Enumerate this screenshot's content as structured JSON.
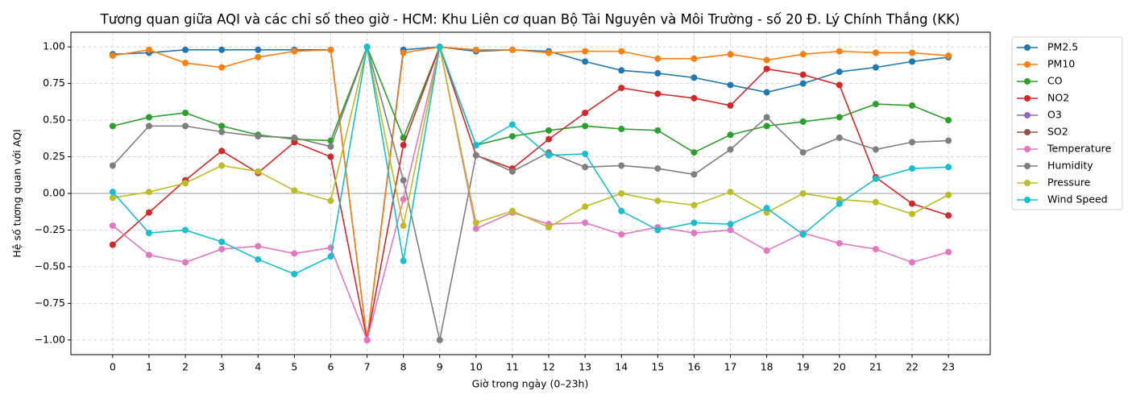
{
  "chart_data": {
    "type": "line",
    "title": "Tương quan giữa AQI và các chỉ số theo giờ - HCM: Khu Liên cơ quan Bộ Tài Nguyên và Môi Trường - số 20 Đ. Lý Chính Thắng (KK)",
    "xlabel": "Giờ trong ngày (0–23h)",
    "ylabel": "Hệ số tương quan với AQI",
    "x": [
      0,
      1,
      2,
      3,
      4,
      5,
      6,
      7,
      8,
      9,
      10,
      11,
      12,
      13,
      14,
      15,
      16,
      17,
      18,
      19,
      20,
      21,
      22,
      23
    ],
    "xlim": [
      -1.15,
      24.15
    ],
    "xticks": [
      0,
      1,
      2,
      3,
      4,
      5,
      6,
      7,
      8,
      9,
      10,
      11,
      12,
      13,
      14,
      15,
      16,
      17,
      18,
      19,
      20,
      21,
      22,
      23
    ],
    "ylim": [
      -1.1,
      1.1
    ],
    "yticks": [
      {
        "value": -1,
        "label": "−1.00"
      },
      {
        "value": -0.75,
        "label": "−0.75"
      },
      {
        "value": -0.5,
        "label": "−0.50"
      },
      {
        "value": -0.25,
        "label": "−0.25"
      },
      {
        "value": 0,
        "label": "0.00"
      },
      {
        "value": 0.25,
        "label": "0.25"
      },
      {
        "value": 0.5,
        "label": "0.50"
      },
      {
        "value": 0.75,
        "label": "0.75"
      },
      {
        "value": 1,
        "label": "1.00"
      }
    ],
    "grid": true,
    "hline": 0,
    "legend": "outside upper right",
    "series": [
      {
        "name": "PM2.5",
        "color": "#1f77b4",
        "values": [
          0.95,
          0.96,
          0.98,
          0.98,
          0.98,
          0.98,
          0.98,
          -1.0,
          0.98,
          1.0,
          0.97,
          0.98,
          0.97,
          0.9,
          0.84,
          0.82,
          0.79,
          0.74,
          0.69,
          0.75,
          0.83,
          0.86,
          0.9,
          0.93
        ]
      },
      {
        "name": "PM10",
        "color": "#ff7f0e",
        "values": [
          0.94,
          0.98,
          0.89,
          0.86,
          0.93,
          0.97,
          0.98,
          -1.0,
          0.96,
          1.0,
          0.98,
          0.98,
          0.96,
          0.97,
          0.97,
          0.92,
          0.92,
          0.95,
          0.91,
          0.95,
          0.97,
          0.96,
          0.96,
          0.94
        ]
      },
      {
        "name": "CO",
        "color": "#2ca02c",
        "values": [
          0.46,
          0.52,
          0.55,
          0.46,
          0.4,
          0.37,
          0.36,
          1.0,
          0.38,
          1.0,
          0.33,
          0.39,
          0.43,
          0.46,
          0.44,
          0.43,
          0.28,
          0.4,
          0.46,
          0.49,
          0.52,
          0.61,
          0.6,
          0.5
        ]
      },
      {
        "name": "NO2",
        "color": "#d62728",
        "values": [
          -0.35,
          -0.13,
          0.09,
          0.29,
          0.14,
          0.35,
          0.25,
          -1.0,
          0.33,
          1.0,
          0.26,
          0.17,
          0.37,
          0.55,
          0.72,
          0.68,
          0.65,
          0.6,
          0.85,
          0.81,
          0.74,
          0.11,
          -0.07,
          -0.15
        ]
      },
      {
        "name": "O3",
        "color": "#9467bd",
        "values": [
          null,
          null,
          null,
          null,
          null,
          null,
          null,
          null,
          null,
          null,
          null,
          null,
          null,
          null,
          null,
          null,
          null,
          null,
          null,
          null,
          null,
          null,
          null,
          null
        ]
      },
      {
        "name": "SO2",
        "color": "#8c564b",
        "values": [
          null,
          null,
          null,
          null,
          null,
          null,
          null,
          null,
          null,
          null,
          null,
          null,
          null,
          null,
          null,
          null,
          null,
          null,
          null,
          null,
          null,
          null,
          null,
          null
        ]
      },
      {
        "name": "Temperature",
        "color": "#e377c2",
        "values": [
          -0.22,
          -0.42,
          -0.47,
          -0.38,
          -0.36,
          -0.41,
          -0.37,
          -1.0,
          -0.04,
          1.0,
          -0.24,
          -0.13,
          -0.21,
          -0.2,
          -0.28,
          -0.23,
          -0.27,
          -0.25,
          -0.39,
          -0.27,
          -0.34,
          -0.38,
          -0.47,
          -0.4
        ]
      },
      {
        "name": "Humidity",
        "color": "#7f7f7f",
        "values": [
          0.19,
          0.46,
          0.46,
          0.42,
          0.39,
          0.38,
          0.32,
          1.0,
          0.09,
          -1.0,
          0.26,
          0.15,
          0.28,
          0.18,
          0.19,
          0.17,
          0.13,
          0.3,
          0.52,
          0.28,
          0.38,
          0.3,
          0.35,
          0.36
        ]
      },
      {
        "name": "Pressure",
        "color": "#bcbd22",
        "values": [
          -0.03,
          0.01,
          0.07,
          0.19,
          0.15,
          0.02,
          -0.05,
          1.0,
          -0.22,
          1.0,
          -0.2,
          -0.12,
          -0.23,
          -0.09,
          0.0,
          -0.05,
          -0.08,
          0.01,
          -0.13,
          0.0,
          -0.04,
          -0.06,
          -0.14,
          -0.01
        ]
      },
      {
        "name": "Wind Speed",
        "color": "#17becf",
        "values": [
          0.01,
          -0.27,
          -0.25,
          -0.33,
          -0.45,
          -0.55,
          -0.43,
          1.0,
          -0.46,
          1.0,
          0.33,
          0.47,
          0.26,
          0.27,
          -0.12,
          -0.25,
          -0.2,
          -0.21,
          -0.1,
          -0.28,
          -0.07,
          0.1,
          0.17,
          0.18
        ]
      }
    ]
  }
}
